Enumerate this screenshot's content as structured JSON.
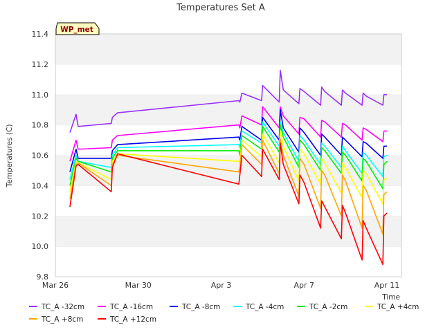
{
  "chart_data": {
    "type": "line",
    "title": "Temperatures Set A",
    "xlabel": "Time",
    "ylabel": "Temperatures (C)",
    "site_label": "WP_met",
    "xlim": [
      0,
      16.7
    ],
    "ylim": [
      9.8,
      11.4
    ],
    "x_ticks": [
      {
        "label": "Mar 26",
        "x": 0
      },
      {
        "label": "Mar 30",
        "x": 4
      },
      {
        "label": "Apr 3",
        "x": 8
      },
      {
        "label": "Apr 7",
        "x": 12
      },
      {
        "label": "Apr 11",
        "x": 16
      }
    ],
    "y_ticks": [
      "9.8",
      "10.0",
      "10.2",
      "10.4",
      "10.6",
      "10.8",
      "11.0",
      "11.2",
      "11.4"
    ],
    "x_values": [
      0.7,
      1.0,
      1.1,
      2.7,
      2.75,
      3.0,
      8.85,
      8.9,
      9.0,
      9.95,
      10.0,
      10.8,
      10.85,
      11.0,
      11.75,
      11.8,
      12.0,
      12.8,
      12.85,
      13.0,
      13.8,
      13.85,
      14.0,
      14.8,
      14.85,
      15.0,
      15.8,
      15.85,
      16.0
    ],
    "series": [
      {
        "name": "TC_A -32cm",
        "color": "#9b30ff",
        "values": [
          10.75,
          10.87,
          10.79,
          10.81,
          10.85,
          10.88,
          10.96,
          10.95,
          11.01,
          10.96,
          11.06,
          10.95,
          11.16,
          11.03,
          10.94,
          11.04,
          11.02,
          10.93,
          11.05,
          11.02,
          10.93,
          11.03,
          11.01,
          10.93,
          11.01,
          10.99,
          10.93,
          11.0,
          11.0
        ]
      },
      {
        "name": "TC_A -16cm",
        "color": "#ff00ff",
        "values": [
          10.56,
          10.7,
          10.64,
          10.65,
          10.7,
          10.73,
          10.8,
          10.78,
          10.86,
          10.8,
          10.92,
          10.78,
          10.92,
          10.86,
          10.74,
          10.85,
          10.84,
          10.72,
          10.83,
          10.82,
          10.72,
          10.81,
          10.8,
          10.7,
          10.78,
          10.77,
          10.69,
          10.76,
          10.76
        ]
      },
      {
        "name": "TC_A -8cm",
        "color": "#0000ee",
        "values": [
          10.49,
          10.64,
          10.58,
          10.58,
          10.63,
          10.67,
          10.72,
          10.7,
          10.79,
          10.7,
          10.85,
          10.7,
          10.9,
          10.78,
          10.62,
          10.78,
          10.75,
          10.6,
          10.74,
          10.72,
          10.6,
          10.72,
          10.7,
          10.59,
          10.69,
          10.68,
          10.58,
          10.66,
          10.66
        ]
      },
      {
        "name": "TC_A -4cm",
        "color": "#00ffff",
        "values": [
          10.44,
          10.6,
          10.56,
          10.52,
          10.6,
          10.65,
          10.67,
          10.65,
          10.76,
          10.68,
          10.82,
          10.66,
          10.82,
          10.75,
          10.56,
          10.73,
          10.7,
          10.54,
          10.68,
          10.66,
          10.52,
          10.66,
          10.63,
          10.48,
          10.62,
          10.6,
          10.46,
          10.59,
          10.6
        ]
      },
      {
        "name": "TC_A -2cm",
        "color": "#00ee00",
        "values": [
          10.4,
          10.58,
          10.56,
          10.49,
          10.58,
          10.63,
          10.63,
          10.6,
          10.73,
          10.64,
          10.79,
          10.62,
          10.8,
          10.72,
          10.52,
          10.7,
          10.67,
          10.5,
          10.65,
          10.63,
          10.48,
          10.62,
          10.6,
          10.43,
          10.58,
          10.56,
          10.38,
          10.54,
          10.56
        ]
      },
      {
        "name": "TC_A +4cm",
        "color": "#ffff00",
        "values": [
          10.36,
          10.56,
          10.55,
          10.44,
          10.56,
          10.61,
          10.56,
          10.55,
          10.7,
          10.59,
          10.74,
          10.55,
          10.76,
          10.66,
          10.43,
          10.64,
          10.61,
          10.41,
          10.58,
          10.55,
          10.35,
          10.55,
          10.52,
          10.32,
          10.5,
          10.48,
          10.28,
          10.44,
          10.45
        ]
      },
      {
        "name": "TC_A +8cm",
        "color": "#ffa500",
        "values": [
          10.31,
          10.54,
          10.55,
          10.4,
          10.54,
          10.6,
          10.49,
          10.52,
          10.67,
          10.54,
          10.7,
          10.48,
          10.71,
          10.6,
          10.33,
          10.58,
          10.54,
          10.25,
          10.5,
          10.47,
          10.2,
          10.47,
          10.43,
          10.12,
          10.4,
          10.37,
          10.08,
          10.34,
          10.36
        ]
      },
      {
        "name": "TC_A +12cm",
        "color": "#ff0000",
        "values": [
          10.26,
          10.53,
          10.54,
          10.36,
          10.52,
          10.61,
          10.41,
          10.47,
          10.6,
          10.46,
          10.64,
          10.44,
          10.68,
          10.54,
          10.28,
          10.47,
          10.42,
          10.12,
          10.3,
          10.26,
          10.05,
          10.27,
          10.22,
          9.91,
          10.17,
          10.12,
          9.88,
          10.2,
          10.22
        ]
      }
    ]
  }
}
